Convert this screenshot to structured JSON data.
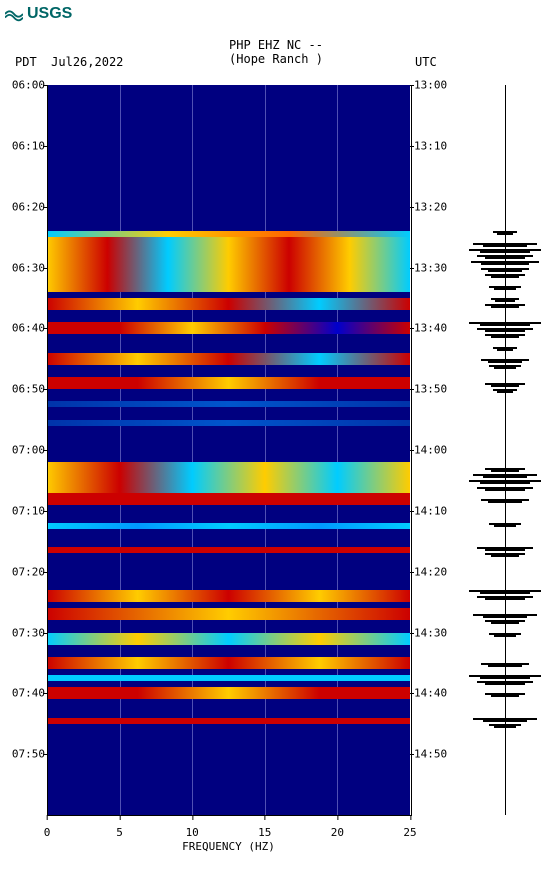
{
  "logo_text": "USGS",
  "header": {
    "line1": "PHP EHZ NC --",
    "line2": "(Hope Ranch )"
  },
  "left_tz": "PDT",
  "date": "Jul26,2022",
  "right_tz": "UTC",
  "plot": {
    "type": "spectrogram",
    "background_color": "#000080",
    "x_label": "FREQUENCY (HZ)",
    "x_ticks": [
      0,
      5,
      10,
      15,
      20,
      25
    ],
    "x_range": [
      0,
      25
    ],
    "left_time_ticks": [
      "06:00",
      "06:10",
      "06:20",
      "06:30",
      "06:40",
      "06:50",
      "07:00",
      "07:10",
      "07:20",
      "07:30",
      "07:40",
      "07:50"
    ],
    "right_time_ticks": [
      "13:00",
      "13:10",
      "13:20",
      "13:30",
      "13:40",
      "13:50",
      "14:00",
      "14:10",
      "14:20",
      "14:30",
      "14:40",
      "14:50"
    ],
    "time_range_minutes": 120,
    "gridline_color": "rgba(200,200,255,0.4)",
    "bands": [
      {
        "start_min": 24,
        "end_min": 25,
        "colors": [
          "#00ccff",
          "#ffcc00",
          "#ff6600",
          "#00ccff"
        ]
      },
      {
        "start_min": 25,
        "end_min": 34,
        "colors": [
          "#ffcc00",
          "#cc0000",
          "#00ccff",
          "#ffcc00",
          "#cc0000",
          "#ffcc00",
          "#00ccff"
        ]
      },
      {
        "start_min": 35,
        "end_min": 37,
        "colors": [
          "#cc0000",
          "#ffcc00",
          "#cc0000",
          "#00ccff",
          "#cc0000"
        ]
      },
      {
        "start_min": 39,
        "end_min": 41,
        "colors": [
          "#cc0000",
          "#cc0000",
          "#ffcc00",
          "#cc0000",
          "#0000cc",
          "#cc0000"
        ]
      },
      {
        "start_min": 44,
        "end_min": 46,
        "colors": [
          "#cc0000",
          "#ffcc00",
          "#cc0000",
          "#00ccff",
          "#cc0000"
        ]
      },
      {
        "start_min": 48,
        "end_min": 50,
        "colors": [
          "#cc0000",
          "#cc0000",
          "#ffcc00",
          "#cc0000",
          "#cc0000"
        ]
      },
      {
        "start_min": 52,
        "end_min": 53,
        "colors": [
          "#0033aa",
          "#0055cc",
          "#0033aa"
        ]
      },
      {
        "start_min": 55,
        "end_min": 56,
        "colors": [
          "#0033aa",
          "#0055cc",
          "#0033aa"
        ]
      },
      {
        "start_min": 62,
        "end_min": 67,
        "colors": [
          "#ffcc00",
          "#cc0000",
          "#00ccff",
          "#ffcc00",
          "#00ccff",
          "#ffcc00"
        ]
      },
      {
        "start_min": 67,
        "end_min": 69,
        "colors": [
          "#cc0000",
          "#cc0000",
          "#cc0000"
        ]
      },
      {
        "start_min": 72,
        "end_min": 73,
        "colors": [
          "#00ccff",
          "#0099ff",
          "#00ccff",
          "#0099ff",
          "#00ccff"
        ]
      },
      {
        "start_min": 76,
        "end_min": 77,
        "colors": [
          "#cc0000",
          "#cc0000",
          "#cc0000"
        ]
      },
      {
        "start_min": 83,
        "end_min": 85,
        "colors": [
          "#cc0000",
          "#ffcc00",
          "#cc0000",
          "#ffcc00",
          "#cc0000"
        ]
      },
      {
        "start_min": 86,
        "end_min": 88,
        "colors": [
          "#cc0000",
          "#ffcc00",
          "#cc0000"
        ]
      },
      {
        "start_min": 90,
        "end_min": 92,
        "colors": [
          "#00ccff",
          "#ffcc00",
          "#00ccff",
          "#ffcc00",
          "#00ccff"
        ]
      },
      {
        "start_min": 94,
        "end_min": 96,
        "colors": [
          "#cc0000",
          "#ffcc00",
          "#cc0000",
          "#ffcc00",
          "#cc0000"
        ]
      },
      {
        "start_min": 97,
        "end_min": 98,
        "colors": [
          "#00ccff",
          "#00ccff",
          "#00ccff"
        ]
      },
      {
        "start_min": 99,
        "end_min": 101,
        "colors": [
          "#cc0000",
          "#cc0000",
          "#ffcc00",
          "#cc0000",
          "#cc0000"
        ]
      },
      {
        "start_min": 104,
        "end_min": 105,
        "colors": [
          "#cc0000",
          "#cc0000",
          "#cc0000"
        ]
      }
    ],
    "waveform_events": [
      {
        "min": 24,
        "amp": 0.3
      },
      {
        "min": 26,
        "amp": 0.8
      },
      {
        "min": 27,
        "amp": 0.9
      },
      {
        "min": 28,
        "amp": 0.7
      },
      {
        "min": 29,
        "amp": 0.85
      },
      {
        "min": 30,
        "amp": 0.6
      },
      {
        "min": 31,
        "amp": 0.5
      },
      {
        "min": 33,
        "amp": 0.4
      },
      {
        "min": 35,
        "amp": 0.35
      },
      {
        "min": 36,
        "amp": 0.5
      },
      {
        "min": 39,
        "amp": 0.9
      },
      {
        "min": 40,
        "amp": 0.7
      },
      {
        "min": 41,
        "amp": 0.5
      },
      {
        "min": 43,
        "amp": 0.3
      },
      {
        "min": 45,
        "amp": 0.6
      },
      {
        "min": 46,
        "amp": 0.4
      },
      {
        "min": 49,
        "amp": 0.5
      },
      {
        "min": 50,
        "amp": 0.3
      },
      {
        "min": 63,
        "amp": 0.5
      },
      {
        "min": 64,
        "amp": 0.8
      },
      {
        "min": 65,
        "amp": 0.9
      },
      {
        "min": 66,
        "amp": 0.7
      },
      {
        "min": 68,
        "amp": 0.6
      },
      {
        "min": 72,
        "amp": 0.4
      },
      {
        "min": 76,
        "amp": 0.7
      },
      {
        "min": 77,
        "amp": 0.5
      },
      {
        "min": 83,
        "amp": 0.9
      },
      {
        "min": 84,
        "amp": 0.7
      },
      {
        "min": 87,
        "amp": 0.8
      },
      {
        "min": 88,
        "amp": 0.5
      },
      {
        "min": 90,
        "amp": 0.4
      },
      {
        "min": 95,
        "amp": 0.6
      },
      {
        "min": 97,
        "amp": 0.9
      },
      {
        "min": 98,
        "amp": 0.7
      },
      {
        "min": 100,
        "amp": 0.5
      },
      {
        "min": 104,
        "amp": 0.8
      },
      {
        "min": 105,
        "amp": 0.4
      }
    ]
  }
}
